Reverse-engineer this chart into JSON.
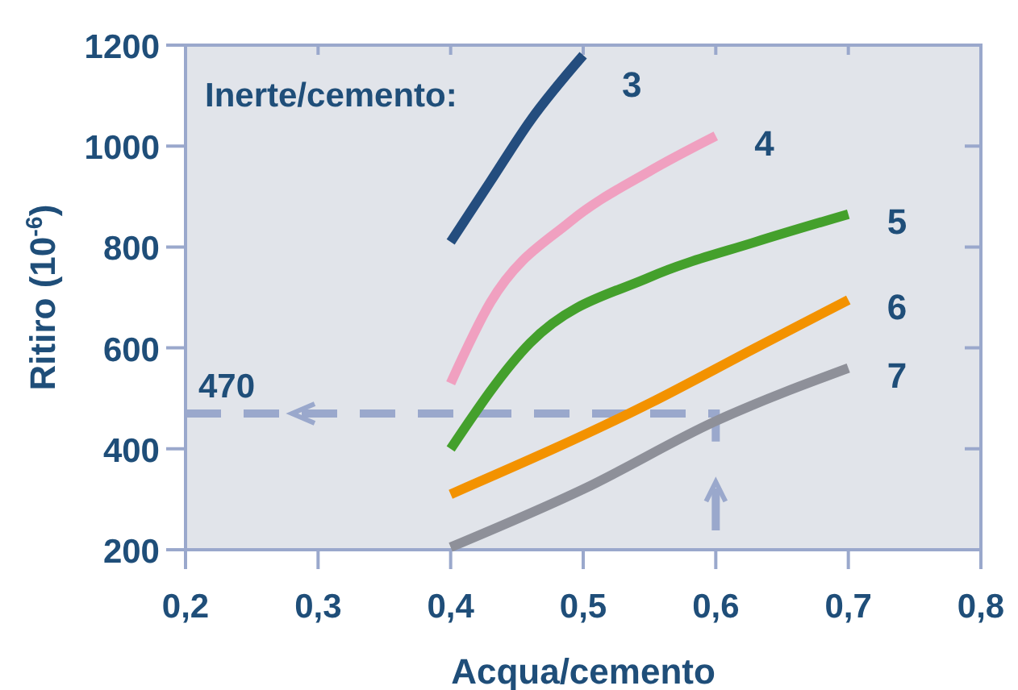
{
  "chart_data": {
    "type": "line",
    "xlabel": "Acqua/cemento",
    "ylabel": "Ritiro (10$^{-6}$)",
    "annotations": [
      "Inerte/cemento:"
    ],
    "xlim": [
      0.2,
      0.8
    ],
    "xticks": [
      {
        "value": 0.2,
        "label": "0,2"
      },
      {
        "value": 0.3,
        "label": "0,3"
      },
      {
        "value": 0.4,
        "label": "0,4"
      },
      {
        "value": 0.5,
        "label": "0,5"
      },
      {
        "value": 0.6,
        "label": "0,6"
      },
      {
        "value": 0.7,
        "label": "0,7"
      },
      {
        "value": 0.8,
        "label": "0,8"
      }
    ],
    "ylim": [
      200,
      1200
    ],
    "yticks": [
      200,
      400,
      600,
      800,
      1000,
      1200
    ],
    "grid": false,
    "legend": false,
    "marker": "none",
    "line_style": "solid",
    "ref_lines": [
      {
        "axis": "y",
        "value": 470,
        "label": "470",
        "color": "#9aa8cc",
        "line_style": "dashed"
      },
      {
        "axis": "x",
        "value": 0.6,
        "color": "#9aa8cc",
        "line_style": "solid"
      }
    ],
    "series": [
      {
        "name": "3",
        "color": "#244d7e",
        "x": [
          0.4,
          0.43,
          0.46,
          0.5
        ],
        "values": [
          810,
          930,
          1050,
          1180
        ]
      },
      {
        "name": "4",
        "color": "#f0a0c0",
        "x": [
          0.4,
          0.43,
          0.49,
          0.55,
          0.6
        ],
        "values": [
          530,
          690,
          850,
          950,
          1020
        ]
      },
      {
        "name": "5",
        "color": "#44a02c",
        "x": [
          0.4,
          0.46,
          0.55,
          0.63,
          0.7
        ],
        "values": [
          400,
          610,
          740,
          810,
          865
        ]
      },
      {
        "name": "6",
        "color": "#f39200",
        "x": [
          0.4,
          0.55,
          0.63,
          0.7
        ],
        "values": [
          310,
          490,
          600,
          695
        ]
      },
      {
        "name": "7",
        "color": "#8e9099",
        "x": [
          0.4,
          0.5,
          0.6,
          0.7
        ],
        "values": [
          205,
          320,
          455,
          560
        ]
      }
    ]
  }
}
